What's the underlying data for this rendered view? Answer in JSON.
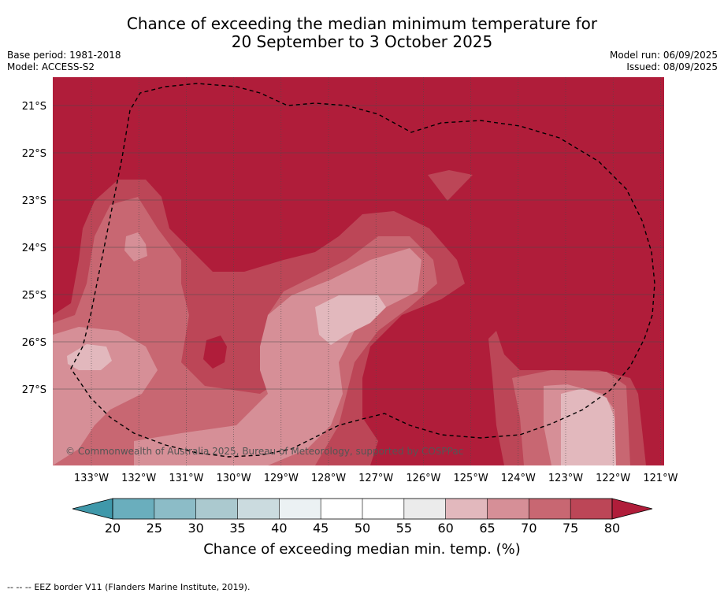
{
  "title": {
    "line1": "Chance of exceeding the median minimum temperature for",
    "line2": "20 September to 3 October 2025"
  },
  "meta_left": {
    "base_period": "Base period: 1981-2018",
    "model": "Model: ACCESS-S2"
  },
  "meta_right": {
    "model_run": "Model run: 06/09/2025",
    "issued": "Issued: 08/09/2025"
  },
  "map": {
    "lat_labels": [
      "21°S",
      "22°S",
      "23°S",
      "24°S",
      "25°S",
      "26°S",
      "27°S"
    ],
    "lon_labels": [
      "133°W",
      "132°W",
      "131°W",
      "130°W",
      "129°W",
      "128°W",
      "127°W",
      "126°W",
      "125°W",
      "124°W",
      "123°W",
      "122°W",
      "121°W"
    ],
    "copyright": "© Commonwealth of Australia 2025, Bureau of Meteorology, supported by COSPPac",
    "grid": true
  },
  "colorbar": {
    "label": "Chance of exceeding median min. temp. (%)",
    "ticks": [
      "20",
      "25",
      "30",
      "35",
      "40",
      "45",
      "50",
      "55",
      "60",
      "65",
      "70",
      "75",
      "80"
    ],
    "colors": [
      "#6aaebd",
      "#8cbcc7",
      "#abc9cf",
      "#cbdbdf",
      "#ebf1f3",
      "#ffffff",
      "#ffffff",
      "#ebebeb",
      "#e2b8bd",
      "#d68f97",
      "#c86772",
      "#bc4657"
    ],
    "under_color": "#3f98aa",
    "over_color": "#b01d3a"
  },
  "footer": {
    "legend_symbol": "-- -- --",
    "legend_text": "EEZ border V11 (Flanders Marine Institute, 2019)."
  }
}
